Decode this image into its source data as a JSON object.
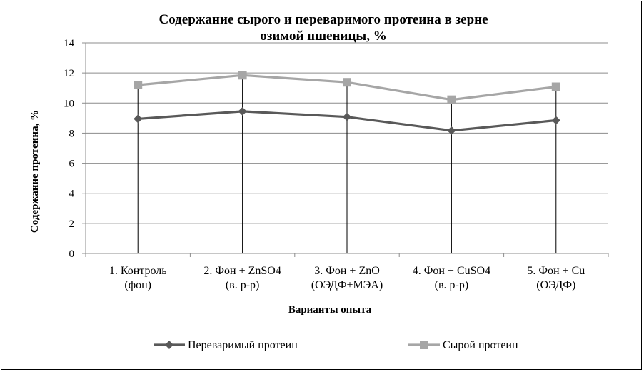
{
  "chart_data": {
    "type": "line",
    "title_lines": [
      "Содержание сырого и переваримого протеина в зерне",
      "озимой пшеницы, %"
    ],
    "xlabel": "Варианты опыта",
    "ylabel": "Содержание протеина, %",
    "ylim": [
      0,
      14
    ],
    "yticks": [
      0,
      2,
      4,
      6,
      8,
      10,
      12,
      14
    ],
    "categories": [
      [
        "1. Контроль",
        "(фон)"
      ],
      [
        "2. Фон + ZnSO4",
        "(в. р-р)"
      ],
      [
        "3. Фон + ZnO",
        "(ОЭДФ+МЭА)"
      ],
      [
        "4. Фон + CuSO4",
        "(в. р-р)"
      ],
      [
        "5. Фон + Cu",
        "(ОЭДФ)"
      ]
    ],
    "series": [
      {
        "name": "Переваримый протеин",
        "values": [
          8.95,
          9.45,
          9.08,
          8.17,
          8.85
        ],
        "color": "#595959",
        "marker": "diamond"
      },
      {
        "name": "Сырой протеин",
        "values": [
          11.2,
          11.85,
          11.38,
          10.22,
          11.08
        ],
        "color": "#a6a6a6",
        "marker": "square"
      }
    ],
    "grid": true,
    "legend_position": "bottom"
  }
}
